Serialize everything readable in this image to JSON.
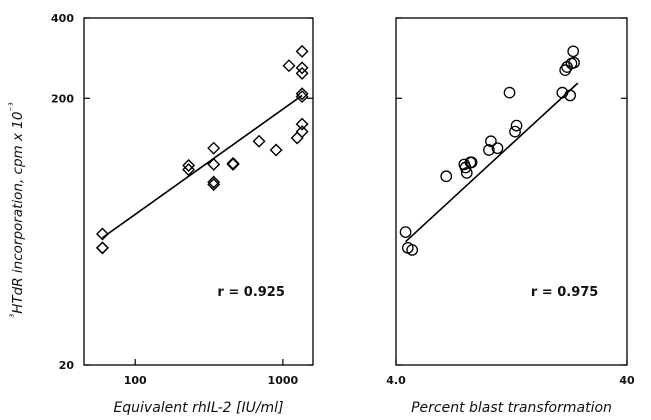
{
  "ylabel_html": "³HTdR incorporation, cpm x 10⁻³",
  "y_ticks": [
    {
      "value": 20,
      "label": "20"
    },
    {
      "value": 200,
      "label": "200"
    },
    {
      "value": 400,
      "label": "400"
    }
  ],
  "chart_data": [
    {
      "type": "scatter",
      "xlabel": "Equivalent rhIL-2 [IU/ml]",
      "ylabel": "³HTdR incorporation, cpm x 10⁻³",
      "xscale": "log",
      "yscale": "log",
      "xlim": [
        45,
        1600
      ],
      "ylim": [
        20,
        400
      ],
      "x_ticks": [
        {
          "value": 100,
          "label": "100"
        },
        {
          "value": 1000,
          "label": "1000"
        }
      ],
      "marker": "diamond",
      "annotation": "r = 0.925",
      "fit_line": {
        "x": [
          60,
          1350
        ],
        "y": [
          60,
          205
        ]
      },
      "points": [
        {
          "x": 60,
          "y": 62
        },
        {
          "x": 60,
          "y": 55
        },
        {
          "x": 60,
          "y": 55
        },
        {
          "x": 230,
          "y": 112
        },
        {
          "x": 230,
          "y": 108
        },
        {
          "x": 340,
          "y": 130
        },
        {
          "x": 340,
          "y": 113
        },
        {
          "x": 340,
          "y": 97
        },
        {
          "x": 340,
          "y": 95
        },
        {
          "x": 460,
          "y": 114
        },
        {
          "x": 460,
          "y": 113
        },
        {
          "x": 690,
          "y": 138
        },
        {
          "x": 900,
          "y": 128
        },
        {
          "x": 1100,
          "y": 265
        },
        {
          "x": 1250,
          "y": 142
        },
        {
          "x": 1350,
          "y": 300
        },
        {
          "x": 1350,
          "y": 260
        },
        {
          "x": 1350,
          "y": 248
        },
        {
          "x": 1350,
          "y": 208
        },
        {
          "x": 1350,
          "y": 203
        },
        {
          "x": 1350,
          "y": 160
        },
        {
          "x": 1350,
          "y": 150
        }
      ]
    },
    {
      "type": "scatter",
      "xlabel": "Percent blast transformation",
      "ylabel": "³HTdR incorporation, cpm x 10⁻³",
      "xscale": "log",
      "yscale": "log",
      "xlim": [
        4,
        40
      ],
      "ylim": [
        20,
        400
      ],
      "x_ticks": [
        {
          "value": 4,
          "label": "4.0"
        },
        {
          "value": 40,
          "label": "40"
        }
      ],
      "marker": "circle",
      "annotation": "r = 0.975",
      "fit_line": {
        "x": [
          4.4,
          24.5
        ],
        "y": [
          58,
          228
        ]
      },
      "points": [
        {
          "x": 4.4,
          "y": 63
        },
        {
          "x": 4.5,
          "y": 55
        },
        {
          "x": 4.7,
          "y": 54
        },
        {
          "x": 6.6,
          "y": 102
        },
        {
          "x": 7.9,
          "y": 113
        },
        {
          "x": 8.0,
          "y": 110
        },
        {
          "x": 8.1,
          "y": 105
        },
        {
          "x": 8.4,
          "y": 115
        },
        {
          "x": 8.5,
          "y": 115
        },
        {
          "x": 10.1,
          "y": 128
        },
        {
          "x": 10.3,
          "y": 138
        },
        {
          "x": 11.0,
          "y": 130
        },
        {
          "x": 12.4,
          "y": 210
        },
        {
          "x": 13.1,
          "y": 150
        },
        {
          "x": 13.3,
          "y": 158
        },
        {
          "x": 21.0,
          "y": 210
        },
        {
          "x": 21.6,
          "y": 255
        },
        {
          "x": 22.0,
          "y": 262
        },
        {
          "x": 22.7,
          "y": 205
        },
        {
          "x": 23.0,
          "y": 270
        },
        {
          "x": 23.4,
          "y": 300
        },
        {
          "x": 23.6,
          "y": 272
        }
      ]
    }
  ]
}
